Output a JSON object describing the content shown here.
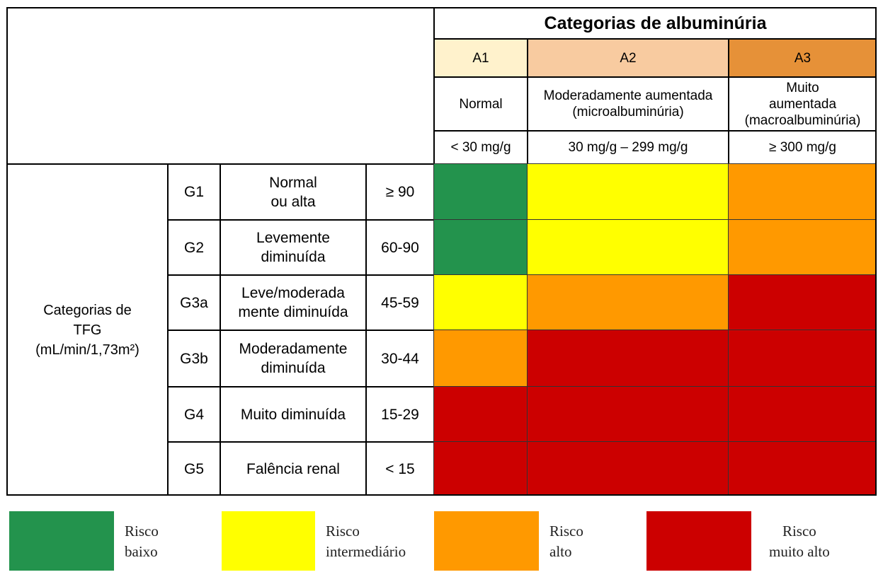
{
  "albuminuria": {
    "title": "Categorias de albuminúria",
    "categories": [
      {
        "code": "A1",
        "description": "Normal",
        "range": "< 30 mg/g",
        "header_color": "#FFF2CC"
      },
      {
        "code": "A2",
        "description": "Moderadamente aumentada\n(microalbuminúria)",
        "range": "30 mg/g – 299 mg/g",
        "header_color": "#F8CBA0"
      },
      {
        "code": "A3",
        "description": "Muito\naumentada\n(macroalbuminúria)",
        "range": "≥ 300 mg/g",
        "header_color": "#E69138"
      }
    ]
  },
  "tfg": {
    "label": "Categorias de\nTFG\n(mL/min/1,73m²)",
    "rows": [
      {
        "code": "G1",
        "description": "Normal\nou alta",
        "range": "≥ 90",
        "risks": [
          "baixo",
          "intermediario",
          "alto"
        ]
      },
      {
        "code": "G2",
        "description": "Levemente\ndiminuída",
        "range": "60-90",
        "risks": [
          "baixo",
          "intermediario",
          "alto"
        ]
      },
      {
        "code": "G3a",
        "description": "Leve/moderada\nmente diminuída",
        "range": "45-59",
        "risks": [
          "intermediario",
          "alto",
          "muito_alto"
        ]
      },
      {
        "code": "G3b",
        "description": "Moderadamente\ndiminuída",
        "range": "30-44",
        "risks": [
          "alto",
          "muito_alto",
          "muito_alto"
        ]
      },
      {
        "code": "G4",
        "description": "Muito diminuída",
        "range": "15-29",
        "risks": [
          "muito_alto",
          "muito_alto",
          "muito_alto"
        ]
      },
      {
        "code": "G5",
        "description": "Falência renal",
        "range": "< 15",
        "risks": [
          "muito_alto",
          "muito_alto",
          "muito_alto"
        ]
      }
    ]
  },
  "risk_colors": {
    "baixo": "#23934D",
    "intermediario": "#FFFF00",
    "alto": "#FF9900",
    "muito_alto": "#CC0000"
  },
  "legend": [
    {
      "key": "baixo",
      "label": "Risco\nbaixo"
    },
    {
      "key": "intermediario",
      "label": "Risco\nintermediário"
    },
    {
      "key": "alto",
      "label": "Risco\nalto"
    },
    {
      "key": "muito_alto",
      "label": "Risco\nmuito alto"
    }
  ]
}
